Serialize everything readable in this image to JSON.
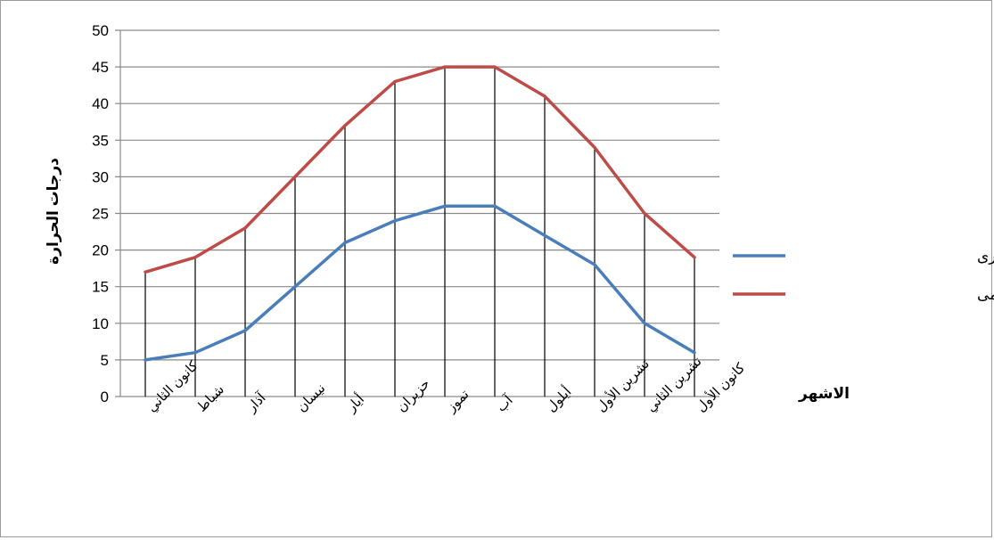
{
  "chart_data": {
    "type": "line",
    "categories": [
      "كانون الثاني",
      "شباط",
      "آذار",
      "نيسان",
      "أيار",
      "حزيران",
      "تموز",
      "آب",
      "أيلول",
      "تشرين الأول",
      "تشرين الثاني",
      "كانون الأول"
    ],
    "series": [
      {
        "name": "درجات الحرارة الصغرى",
        "color": "#4a7ebb",
        "values": [
          5,
          6,
          9,
          15,
          21,
          24,
          26,
          26,
          22,
          18,
          10,
          6
        ]
      },
      {
        "name": "درجات الحرارة العضمى",
        "color": "#be4b48",
        "values": [
          17,
          19,
          23,
          30,
          37,
          43,
          45,
          45,
          41,
          34,
          25,
          19
        ]
      }
    ],
    "title": "",
    "xlabel": "الاشهر",
    "ylabel": "درجات الحرارة",
    "ylim": [
      0,
      50
    ],
    "yticks": [
      "0",
      "5",
      "10",
      "15",
      "20",
      "25",
      "30",
      "35",
      "40",
      "45",
      "50"
    ],
    "grid": true,
    "legend_position": "right"
  }
}
